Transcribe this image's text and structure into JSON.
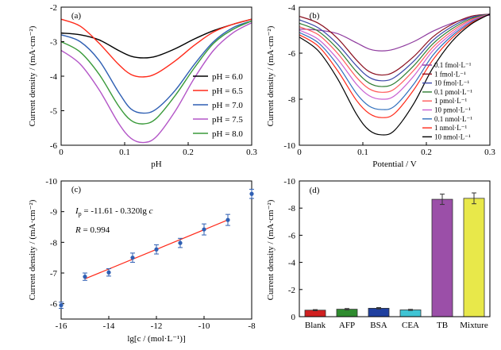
{
  "chart_data": [
    {
      "panel": "(a)",
      "type": "line",
      "xlabel": "pH",
      "ylabel": "Current density / (mA·cm⁻²)",
      "xlim": [
        0,
        0.3
      ],
      "ylim": [
        -6,
        -2
      ],
      "xticks": [
        "0",
        "0.1",
        "0.2",
        "0.3"
      ],
      "yticks": [
        "-6",
        "-5",
        "-4",
        "-3",
        "-2"
      ],
      "legend_position": "right",
      "series": [
        {
          "name": "pH = 6.0",
          "color": "#000000",
          "x": [
            0,
            0.03,
            0.06,
            0.09,
            0.11,
            0.13,
            0.15,
            0.18,
            0.21,
            0.24,
            0.27,
            0.3
          ],
          "y": [
            -2.75,
            -2.8,
            -2.95,
            -3.25,
            -3.42,
            -3.47,
            -3.42,
            -3.2,
            -2.92,
            -2.68,
            -2.5,
            -2.35
          ]
        },
        {
          "name": "pH = 6.5",
          "color": "#ff2a1a",
          "x": [
            0,
            0.03,
            0.06,
            0.09,
            0.11,
            0.13,
            0.15,
            0.18,
            0.21,
            0.24,
            0.27,
            0.3
          ],
          "y": [
            -2.35,
            -2.55,
            -3.05,
            -3.65,
            -3.95,
            -4.02,
            -3.92,
            -3.55,
            -3.1,
            -2.72,
            -2.5,
            -2.35
          ]
        },
        {
          "name": "pH = 7.0",
          "color": "#2f5fb3",
          "x": [
            0,
            0.03,
            0.06,
            0.09,
            0.11,
            0.13,
            0.15,
            0.18,
            0.21,
            0.24,
            0.27,
            0.3
          ],
          "y": [
            -2.8,
            -3.0,
            -3.55,
            -4.45,
            -4.95,
            -5.07,
            -4.95,
            -4.4,
            -3.65,
            -3.0,
            -2.6,
            -2.4
          ]
        },
        {
          "name": "pH = 7.5",
          "color": "#b355c7",
          "x": [
            0,
            0.03,
            0.06,
            0.09,
            0.11,
            0.13,
            0.15,
            0.18,
            0.21,
            0.24,
            0.27,
            0.3
          ],
          "y": [
            -3.25,
            -3.65,
            -4.4,
            -5.35,
            -5.8,
            -5.92,
            -5.75,
            -5.0,
            -4.05,
            -3.25,
            -2.75,
            -2.45
          ]
        },
        {
          "name": "pH = 8.0",
          "color": "#3a9a3a",
          "x": [
            0,
            0.03,
            0.06,
            0.09,
            0.11,
            0.13,
            0.15,
            0.18,
            0.21,
            0.24,
            0.27,
            0.3
          ],
          "y": [
            -3.0,
            -3.3,
            -3.95,
            -4.85,
            -5.28,
            -5.38,
            -5.22,
            -4.55,
            -3.75,
            -3.05,
            -2.65,
            -2.4
          ]
        }
      ]
    },
    {
      "panel": "(b)",
      "type": "line",
      "xlabel": "Potential / V",
      "ylabel": "Current density / (mA·cm⁻²)",
      "xlim": [
        0,
        0.3
      ],
      "ylim": [
        -10,
        -4
      ],
      "xticks": [
        "0",
        "0.1",
        "0.2",
        "0.3"
      ],
      "yticks": [
        "-10",
        "-8",
        "-6",
        "-4"
      ],
      "legend_position": "right",
      "series": [
        {
          "name": "0.1 fmol·L⁻¹",
          "color": "#8e3a9e",
          "x": [
            0,
            0.03,
            0.06,
            0.09,
            0.11,
            0.13,
            0.15,
            0.18,
            0.21,
            0.24,
            0.27,
            0.3
          ],
          "y": [
            -4.95,
            -5.0,
            -5.15,
            -5.55,
            -5.82,
            -5.9,
            -5.82,
            -5.5,
            -5.05,
            -4.7,
            -4.45,
            -4.35
          ]
        },
        {
          "name": "1 fmol·L⁻¹",
          "color": "#8b1020",
          "x": [
            0,
            0.03,
            0.06,
            0.09,
            0.11,
            0.13,
            0.15,
            0.18,
            0.21,
            0.24,
            0.27,
            0.3
          ],
          "y": [
            -4.4,
            -4.7,
            -5.35,
            -6.3,
            -6.8,
            -6.95,
            -6.8,
            -6.15,
            -5.3,
            -4.75,
            -4.4,
            -4.3
          ]
        },
        {
          "name": "10 fmol·L⁻¹",
          "color": "#3a46a8",
          "x": [
            0,
            0.03,
            0.06,
            0.09,
            0.11,
            0.13,
            0.15,
            0.18,
            0.21,
            0.24,
            0.27,
            0.3
          ],
          "y": [
            -4.55,
            -4.9,
            -5.6,
            -6.55,
            -7.05,
            -7.2,
            -7.05,
            -6.35,
            -5.45,
            -4.85,
            -4.45,
            -4.3
          ]
        },
        {
          "name": "0.1 pmol·L⁻¹",
          "color": "#2e7d32",
          "x": [
            0,
            0.03,
            0.06,
            0.09,
            0.11,
            0.13,
            0.15,
            0.18,
            0.21,
            0.24,
            0.27,
            0.3
          ],
          "y": [
            -4.7,
            -5.05,
            -5.8,
            -6.8,
            -7.3,
            -7.45,
            -7.3,
            -6.55,
            -5.6,
            -4.95,
            -4.5,
            -4.3
          ]
        },
        {
          "name": "1 pmol·L⁻¹",
          "color": "#ff5a5a",
          "x": [
            0,
            0.03,
            0.06,
            0.09,
            0.11,
            0.13,
            0.15,
            0.18,
            0.21,
            0.24,
            0.27,
            0.3
          ],
          "y": [
            -4.85,
            -5.2,
            -6.0,
            -7.05,
            -7.55,
            -7.7,
            -7.55,
            -6.75,
            -5.75,
            -5.05,
            -4.55,
            -4.3
          ]
        },
        {
          "name": "10 pmol·L⁻¹",
          "color": "#c95fd1",
          "x": [
            0,
            0.03,
            0.06,
            0.09,
            0.11,
            0.13,
            0.15,
            0.18,
            0.21,
            0.24,
            0.27,
            0.3
          ],
          "y": [
            -5.0,
            -5.4,
            -6.25,
            -7.35,
            -7.85,
            -8.0,
            -7.85,
            -7.0,
            -5.9,
            -5.15,
            -4.6,
            -4.3
          ]
        },
        {
          "name": "0.1 nmol·L⁻¹",
          "color": "#2f6fbd",
          "x": [
            0,
            0.03,
            0.06,
            0.09,
            0.11,
            0.13,
            0.15,
            0.18,
            0.21,
            0.24,
            0.27,
            0.3
          ],
          "y": [
            -5.1,
            -5.55,
            -6.5,
            -7.75,
            -8.3,
            -8.45,
            -8.3,
            -7.35,
            -6.1,
            -5.25,
            -4.65,
            -4.3
          ]
        },
        {
          "name": "1 nmol·L⁻¹",
          "color": "#ff2a1a",
          "x": [
            0,
            0.03,
            0.06,
            0.09,
            0.11,
            0.13,
            0.15,
            0.18,
            0.21,
            0.24,
            0.27,
            0.3
          ],
          "y": [
            -5.2,
            -5.7,
            -6.75,
            -8.05,
            -8.62,
            -8.8,
            -8.62,
            -7.6,
            -6.3,
            -5.35,
            -4.7,
            -4.3
          ]
        },
        {
          "name": "10 nmol·L⁻¹",
          "color": "#000000",
          "x": [
            0,
            0.03,
            0.06,
            0.09,
            0.11,
            0.13,
            0.15,
            0.18,
            0.21,
            0.24,
            0.27,
            0.3
          ],
          "y": [
            -5.3,
            -5.9,
            -7.1,
            -8.65,
            -9.35,
            -9.55,
            -9.35,
            -8.2,
            -6.65,
            -5.5,
            -4.75,
            -4.3
          ]
        }
      ]
    },
    {
      "panel": "(c)",
      "type": "scatter",
      "xlabel": "lg[c / (mol·L⁻¹)]",
      "ylabel": "Current density / (mA·cm⁻²)",
      "xlim": [
        -16,
        -8
      ],
      "ylim": [
        -5.5,
        -10
      ],
      "xticks": [
        "-16",
        "-14",
        "-12",
        "-10",
        "-8"
      ],
      "yticks": [
        "-6",
        "-7",
        "-8",
        "-9",
        "-10"
      ],
      "equation_label": "I",
      "equation_subscript": "p",
      "equation_rest": " = -11.61 - 0.320lg ",
      "equation_var": "c",
      "r_label": "R",
      "r_value": " = 0.994",
      "point_color": "#2f5fb3",
      "fit_color": "#ff2a1a",
      "fit_x": [
        -15,
        -9
      ],
      "x": [
        -16,
        -15,
        -14,
        -13,
        -12,
        -11,
        -10,
        -9,
        -8
      ],
      "y": [
        -5.95,
        -6.88,
        -7.02,
        -7.5,
        -7.77,
        -7.98,
        -8.42,
        -8.73,
        -9.58
      ],
      "yerr": [
        0.1,
        0.12,
        0.12,
        0.15,
        0.15,
        0.15,
        0.18,
        0.18,
        0.15
      ]
    },
    {
      "panel": "(d)",
      "type": "bar",
      "ylabel": "Current density / (mA·cm⁻²)",
      "ylim": [
        0,
        -10
      ],
      "yticks": [
        "0",
        "-2",
        "-4",
        "-6",
        "-8",
        "-10"
      ],
      "categories": [
        "Blank",
        "AFP",
        "BSA",
        "CEA",
        "TB",
        "Mixture"
      ],
      "values": [
        -0.48,
        -0.55,
        -0.62,
        -0.5,
        -8.65,
        -8.72
      ],
      "errors": [
        0.04,
        0.05,
        0.05,
        0.04,
        0.38,
        0.4
      ],
      "colors": [
        "#d02020",
        "#2e8b2e",
        "#1f3f9f",
        "#3fc4d4",
        "#9b4fa8",
        "#e8e84a"
      ]
    }
  ]
}
